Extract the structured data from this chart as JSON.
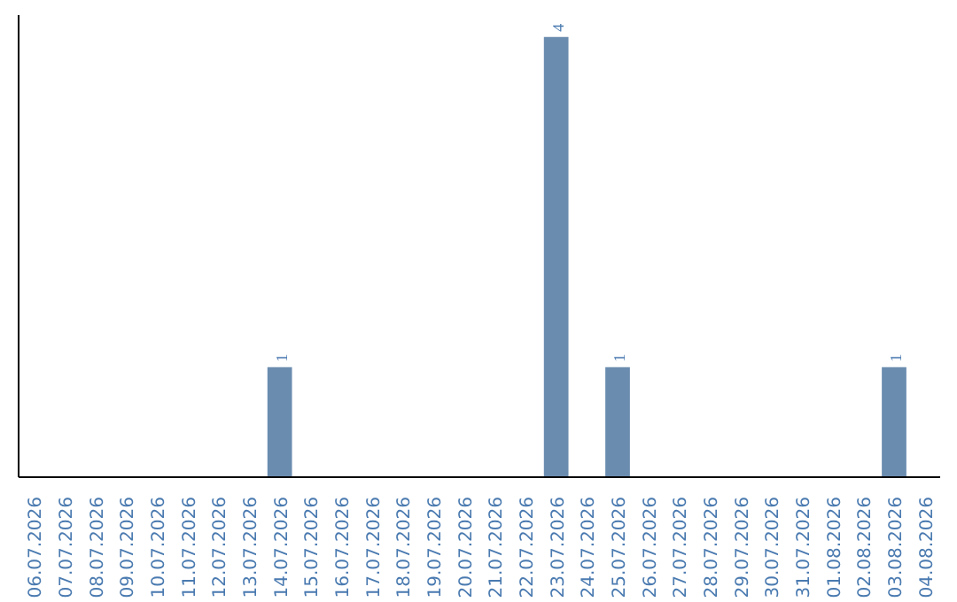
{
  "chart_data": {
    "type": "bar",
    "categories": [
      "06.07.2026",
      "07.07.2026",
      "08.07.2026",
      "09.07.2026",
      "10.07.2026",
      "11.07.2026",
      "12.07.2026",
      "13.07.2026",
      "14.07.2026",
      "15.07.2026",
      "16.07.2026",
      "17.07.2026",
      "18.07.2026",
      "19.07.2026",
      "20.07.2026",
      "21.07.2026",
      "22.07.2026",
      "23.07.2026",
      "24.07.2026",
      "25.07.2026",
      "26.07.2026",
      "27.07.2026",
      "28.07.2026",
      "29.07.2026",
      "30.07.2026",
      "31.07.2026",
      "01.08.2026",
      "02.08.2026",
      "03.08.2026",
      "04.08.2026"
    ],
    "values": [
      0,
      0,
      0,
      0,
      0,
      0,
      0,
      0,
      1,
      0,
      0,
      0,
      0,
      0,
      0,
      0,
      0,
      4,
      0,
      1,
      0,
      0,
      0,
      0,
      0,
      0,
      0,
      0,
      1,
      0
    ],
    "value_labels": [
      null,
      null,
      null,
      null,
      null,
      null,
      null,
      null,
      "1",
      null,
      null,
      null,
      null,
      null,
      null,
      null,
      null,
      "4",
      null,
      "1",
      null,
      null,
      null,
      null,
      null,
      null,
      null,
      null,
      "1",
      null
    ],
    "color": "#6a8caf",
    "grid": false
  }
}
